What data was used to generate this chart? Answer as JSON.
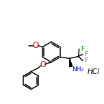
{
  "bg_color": "#ffffff",
  "bond_color": "#000000",
  "atom_colors": {
    "O": "#e00000",
    "N": "#0000cc",
    "F": "#008800",
    "Cl": "#008800"
  },
  "lw": 1.1,
  "fs": 6.5
}
